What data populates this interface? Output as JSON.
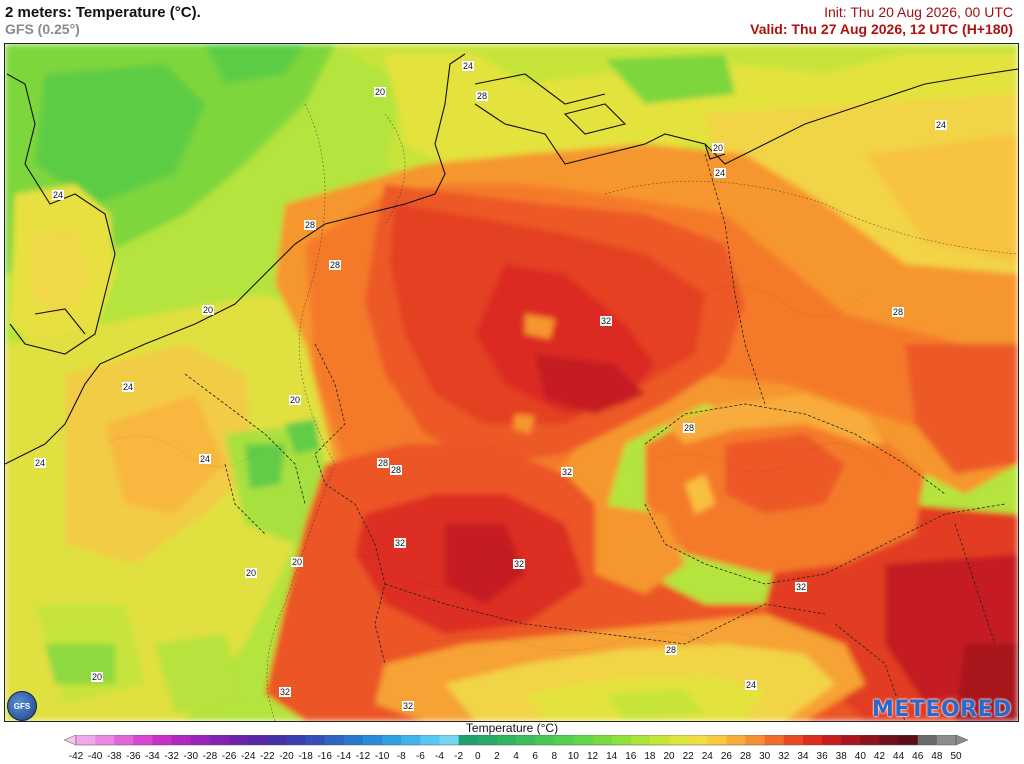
{
  "header": {
    "title": "2 meters: Temperature (°C).",
    "model": "GFS (0.25°)",
    "init": "Init: Thu 20 Aug 2026, 00 UTC",
    "valid": "Valid: Thu 27 Aug 2026, 12 UTC (H+180)"
  },
  "map": {
    "isotherm_labels": [
      {
        "text": "24"
      },
      {
        "text": "28"
      },
      {
        "text": "20"
      },
      {
        "text": "24"
      },
      {
        "text": "24"
      },
      {
        "text": "28"
      },
      {
        "text": "20"
      },
      {
        "text": "24"
      },
      {
        "text": "28"
      },
      {
        "text": "20"
      },
      {
        "text": "32"
      },
      {
        "text": "24"
      },
      {
        "text": "20"
      },
      {
        "text": "28"
      },
      {
        "text": "24"
      },
      {
        "text": "28"
      },
      {
        "text": "32"
      },
      {
        "text": "32"
      },
      {
        "text": "28"
      },
      {
        "text": "20"
      },
      {
        "text": "32"
      },
      {
        "text": "20"
      },
      {
        "text": "32"
      },
      {
        "text": "32"
      },
      {
        "text": "28"
      },
      {
        "text": "20"
      },
      {
        "text": "24"
      },
      {
        "text": "32"
      },
      {
        "text": "28"
      },
      {
        "text": "24"
      }
    ]
  },
  "logo": {
    "gfs": "GFS"
  },
  "brand": "METEORED",
  "legend": {
    "title": "Temperature (°C)",
    "ticks": [
      "-42",
      "-40",
      "-38",
      "-36",
      "-34",
      "-32",
      "-30",
      "-28",
      "-26",
      "-24",
      "-22",
      "-20",
      "-18",
      "-16",
      "-14",
      "-12",
      "-10",
      "-8",
      "-6",
      "-4",
      "-2",
      "0",
      "2",
      "4",
      "6",
      "8",
      "10",
      "12",
      "14",
      "16",
      "18",
      "20",
      "22",
      "24",
      "26",
      "28",
      "30",
      "32",
      "34",
      "36",
      "38",
      "40",
      "42",
      "44",
      "46",
      "48",
      "50"
    ],
    "colors": [
      "#f5c8f0",
      "#f0a8ea",
      "#e888e2",
      "#e066da",
      "#d846d2",
      "#c830c8",
      "#b028c0",
      "#9a24b8",
      "#8422b2",
      "#6e22aa",
      "#5a26a8",
      "#4630a6",
      "#3a3eae",
      "#3450b8",
      "#2f64c2",
      "#2a78cc",
      "#2a8cd6",
      "#30a0e0",
      "#40b4e8",
      "#58c6ee",
      "#74d6f2",
      "#20a070",
      "#28aa68",
      "#30b462",
      "#3cbe5c",
      "#48c656",
      "#54ce50",
      "#64d448",
      "#78da40",
      "#8ee03a",
      "#a8e43a",
      "#c2e63a",
      "#dce43e",
      "#f0dc44",
      "#f8c840",
      "#f8ac3a",
      "#f68e32",
      "#f06c2a",
      "#e84a24",
      "#dc2e20",
      "#c41e1e",
      "#a8161e",
      "#8c121c",
      "#72101a",
      "#5a0e18",
      "#6a6a6a",
      "#8c8c8c"
    ]
  }
}
